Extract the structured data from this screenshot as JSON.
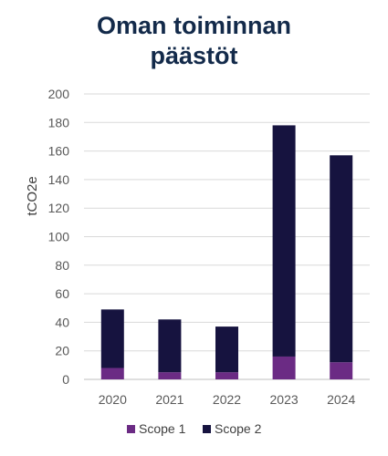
{
  "chart_data": {
    "type": "bar",
    "stacked": true,
    "title_lines": [
      "Oman toiminnan",
      "päästöt"
    ],
    "ylabel": "tCO2e",
    "xlabel": "",
    "categories": [
      "2020",
      "2021",
      "2022",
      "2023",
      "2024"
    ],
    "series": [
      {
        "name": "Scope 1",
        "values": [
          8,
          5,
          5,
          16,
          12
        ],
        "color": "#6b2b84"
      },
      {
        "name": "Scope 2",
        "values": [
          41,
          37,
          32,
          162,
          145
        ],
        "color": "#16133f"
      }
    ],
    "ylim": [
      0,
      200
    ],
    "yticks": [
      "0",
      "20",
      "40",
      "60",
      "80",
      "100",
      "120",
      "140",
      "160",
      "180",
      "200"
    ],
    "grid": true,
    "legend_position": "bottom"
  }
}
